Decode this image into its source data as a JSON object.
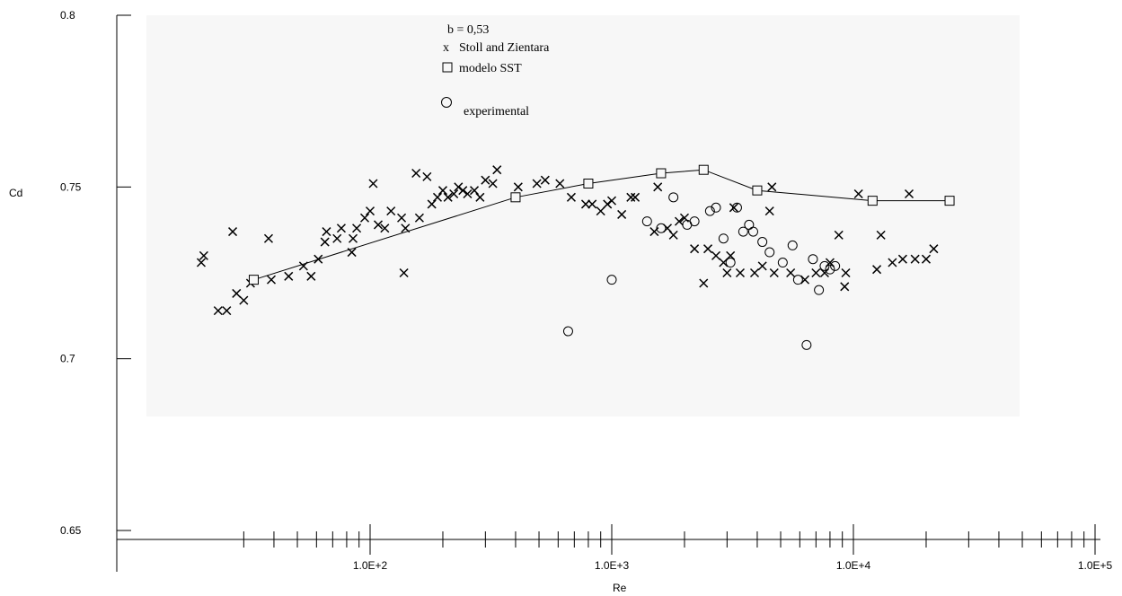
{
  "chart_data": {
    "type": "scatter",
    "title": "",
    "xlabel": "Re",
    "ylabel": "Cd",
    "x_scale": "log",
    "xlim": [
      17,
      100000
    ],
    "ylim": [
      0.65,
      0.8
    ],
    "x_tick_labels": [
      "1.0E+2",
      "1.0E+3",
      "1.0E+4",
      "1.0E+5"
    ],
    "y_tick_labels": [
      "0.65",
      "0.7",
      "0.75",
      "0.8"
    ],
    "legend_position": "top-center",
    "legend_header": "b = 0,53",
    "colors": {
      "plot_background": "#f7f7f7",
      "ink": "#000000"
    },
    "series": [
      {
        "name": "Stoll and Zientara",
        "marker": "x",
        "points": [
          [
            20,
            0.728
          ],
          [
            20.5,
            0.73
          ],
          [
            23.5,
            0.714
          ],
          [
            25.5,
            0.714
          ],
          [
            27,
            0.737
          ],
          [
            28,
            0.719
          ],
          [
            30,
            0.717
          ],
          [
            32,
            0.722
          ],
          [
            38,
            0.735
          ],
          [
            39,
            0.723
          ],
          [
            46,
            0.724
          ],
          [
            53,
            0.727
          ],
          [
            57,
            0.724
          ],
          [
            61,
            0.729
          ],
          [
            65,
            0.734
          ],
          [
            66,
            0.737
          ],
          [
            73,
            0.735
          ],
          [
            76,
            0.738
          ],
          [
            84,
            0.731
          ],
          [
            85,
            0.735
          ],
          [
            88,
            0.738
          ],
          [
            95,
            0.741
          ],
          [
            100,
            0.743
          ],
          [
            103,
            0.751
          ],
          [
            108,
            0.739
          ],
          [
            115,
            0.738
          ],
          [
            122,
            0.743
          ],
          [
            135,
            0.741
          ],
          [
            138,
            0.725
          ],
          [
            140,
            0.738
          ],
          [
            155,
            0.754
          ],
          [
            160,
            0.741
          ],
          [
            172,
            0.753
          ],
          [
            180,
            0.745
          ],
          [
            190,
            0.747
          ],
          [
            200,
            0.749
          ],
          [
            210,
            0.747
          ],
          [
            222,
            0.748
          ],
          [
            232,
            0.75
          ],
          [
            242,
            0.749
          ],
          [
            253,
            0.748
          ],
          [
            270,
            0.749
          ],
          [
            285,
            0.747
          ],
          [
            300,
            0.752
          ],
          [
            322,
            0.751
          ],
          [
            335,
            0.755
          ],
          [
            410,
            0.75
          ],
          [
            490,
            0.751
          ],
          [
            530,
            0.752
          ],
          [
            610,
            0.751
          ],
          [
            680,
            0.747
          ],
          [
            780,
            0.745
          ],
          [
            830,
            0.745
          ],
          [
            900,
            0.743
          ],
          [
            960,
            0.745
          ],
          [
            1000,
            0.746
          ],
          [
            1100,
            0.742
          ],
          [
            1200,
            0.747
          ],
          [
            1250,
            0.747
          ],
          [
            1500,
            0.737
          ],
          [
            1550,
            0.75
          ],
          [
            1700,
            0.738
          ],
          [
            1800,
            0.736
          ],
          [
            1900,
            0.74
          ],
          [
            2000,
            0.741
          ],
          [
            2200,
            0.732
          ],
          [
            2400,
            0.722
          ],
          [
            2500,
            0.732
          ],
          [
            2700,
            0.73
          ],
          [
            2900,
            0.728
          ],
          [
            3000,
            0.725
          ],
          [
            3100,
            0.73
          ],
          [
            3200,
            0.744
          ],
          [
            3400,
            0.725
          ],
          [
            3900,
            0.725
          ],
          [
            4200,
            0.727
          ],
          [
            4500,
            0.743
          ],
          [
            4600,
            0.75
          ],
          [
            4700,
            0.725
          ],
          [
            5500,
            0.725
          ],
          [
            6300,
            0.723
          ],
          [
            7000,
            0.725
          ],
          [
            7600,
            0.725
          ],
          [
            8000,
            0.728
          ],
          [
            8700,
            0.736
          ],
          [
            9200,
            0.721
          ],
          [
            9300,
            0.725
          ],
          [
            10500,
            0.748
          ],
          [
            12500,
            0.726
          ],
          [
            13000,
            0.736
          ],
          [
            14500,
            0.728
          ],
          [
            16000,
            0.729
          ],
          [
            17000,
            0.748
          ],
          [
            18000,
            0.729
          ],
          [
            20000,
            0.729
          ],
          [
            21500,
            0.732
          ]
        ]
      },
      {
        "name": "modelo SST",
        "marker": "square",
        "line": true,
        "points": [
          [
            33,
            0.723
          ],
          [
            400,
            0.747
          ],
          [
            800,
            0.751
          ],
          [
            1600,
            0.754
          ],
          [
            2400,
            0.755
          ],
          [
            4000,
            0.749
          ],
          [
            12000,
            0.746
          ],
          [
            25000,
            0.746
          ]
        ]
      },
      {
        "name": "experimental",
        "marker": "circle",
        "points": [
          [
            660,
            0.708
          ],
          [
            1000,
            0.723
          ],
          [
            1400,
            0.74
          ],
          [
            1600,
            0.738
          ],
          [
            1800,
            0.747
          ],
          [
            2050,
            0.739
          ],
          [
            2200,
            0.74
          ],
          [
            2550,
            0.743
          ],
          [
            2700,
            0.744
          ],
          [
            2900,
            0.735
          ],
          [
            3100,
            0.728
          ],
          [
            3300,
            0.744
          ],
          [
            3500,
            0.737
          ],
          [
            3700,
            0.739
          ],
          [
            3850,
            0.737
          ],
          [
            4200,
            0.734
          ],
          [
            4500,
            0.731
          ],
          [
            5100,
            0.728
          ],
          [
            5600,
            0.733
          ],
          [
            5900,
            0.723
          ],
          [
            6400,
            0.704
          ],
          [
            6800,
            0.729
          ],
          [
            7200,
            0.72
          ],
          [
            7600,
            0.727
          ],
          [
            8000,
            0.726
          ],
          [
            8400,
            0.727
          ]
        ]
      }
    ]
  }
}
